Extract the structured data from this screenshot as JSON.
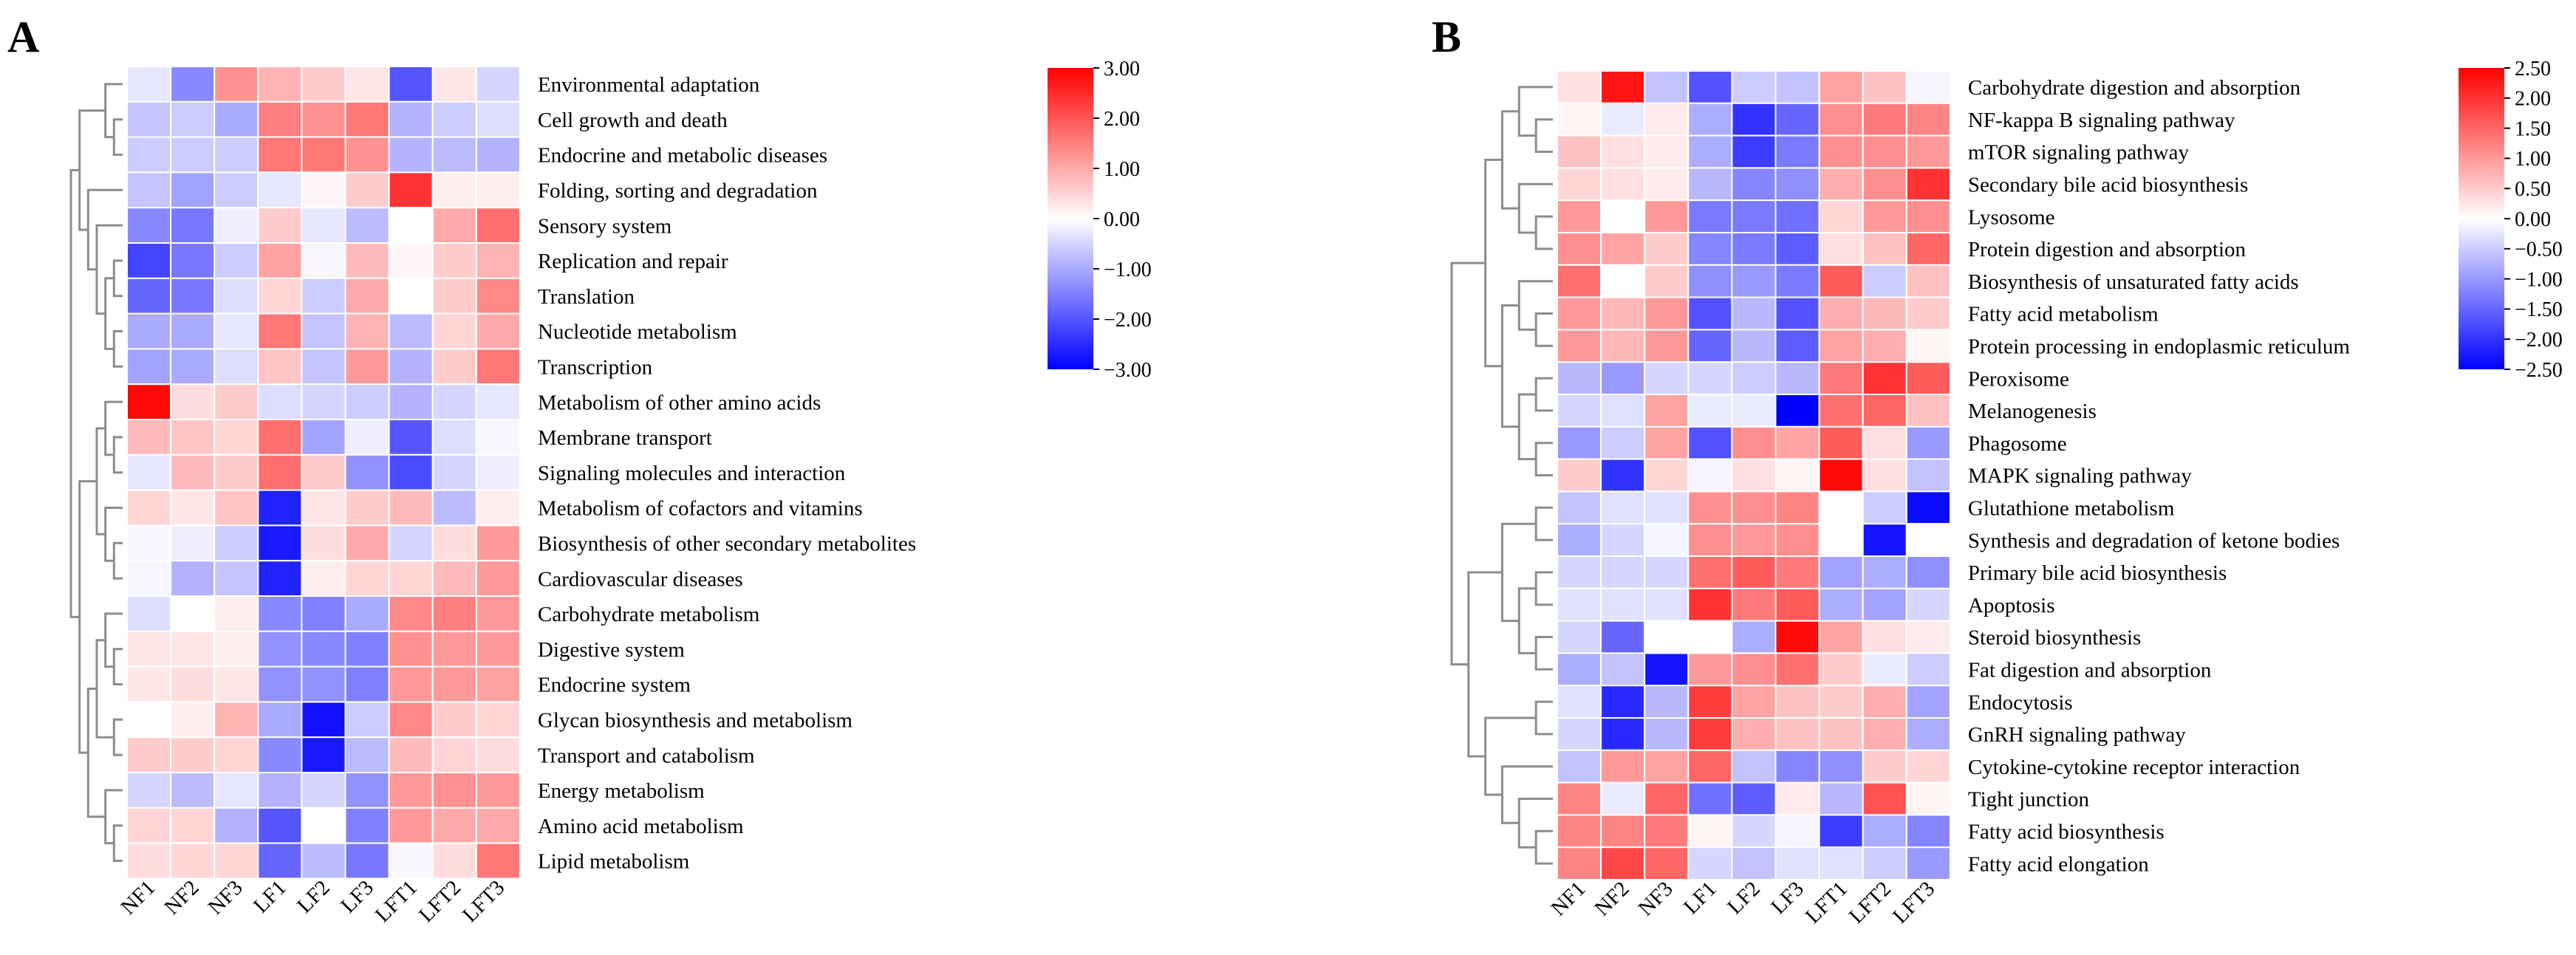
{
  "chart_data": [
    {
      "type": "heatmap",
      "panel_label": "A",
      "columns": [
        "NF1",
        "NF2",
        "NF3",
        "LF1",
        "LF2",
        "LF3",
        "LFT1",
        "LFT2",
        "LFT3"
      ],
      "rows": [
        "Environmental adaptation",
        "Cell growth and death",
        "Endocrine and metabolic diseases",
        "Folding, sorting and degradation",
        "Sensory system",
        "Replication and repair",
        "Translation",
        "Nucleotide metabolism",
        "Transcription",
        "Metabolism of other amino acids",
        "Membrane transport",
        "Signaling molecules and interaction",
        "Metabolism of cofactors and vitamins",
        "Biosynthesis of other secondary metabolites",
        "Cardiovascular diseases",
        "Carbohydrate metabolism",
        "Digestive system",
        "Endocrine system",
        "Glycan biosynthesis and metabolism",
        "Transport and catabolism",
        "Energy metabolism",
        "Amino acid metabolism",
        "Lipid metabolism"
      ],
      "values": [
        [
          -0.3,
          -1.4,
          1.3,
          0.9,
          0.6,
          0.3,
          -2.0,
          0.3,
          -0.5
        ],
        [
          -0.7,
          -0.6,
          -1.0,
          1.5,
          1.3,
          1.6,
          -0.9,
          -0.6,
          -0.4
        ],
        [
          -0.6,
          -0.6,
          -0.6,
          1.6,
          1.6,
          1.3,
          -0.9,
          -0.8,
          -0.9
        ],
        [
          -0.7,
          -1.1,
          -0.6,
          -0.3,
          0.1,
          0.6,
          2.4,
          0.2,
          0.2
        ],
        [
          -1.4,
          -1.6,
          -0.2,
          0.6,
          -0.3,
          -0.8,
          0.0,
          1.0,
          1.7
        ],
        [
          -2.2,
          -1.6,
          -0.6,
          1.1,
          -0.1,
          0.8,
          0.1,
          0.6,
          0.9
        ],
        [
          -1.8,
          -1.6,
          -0.4,
          0.5,
          -0.6,
          1.0,
          0.0,
          0.6,
          1.4
        ],
        [
          -1.0,
          -1.0,
          -0.3,
          1.6,
          -0.7,
          0.9,
          -0.8,
          0.5,
          1.0
        ],
        [
          -1.1,
          -1.0,
          -0.4,
          0.7,
          -0.7,
          1.2,
          -0.9,
          0.6,
          1.6
        ],
        [
          2.9,
          0.4,
          0.6,
          -0.4,
          -0.5,
          -0.6,
          -0.9,
          -0.5,
          -0.3
        ],
        [
          0.8,
          0.7,
          0.5,
          1.7,
          -1.1,
          -0.2,
          -2.0,
          -0.4,
          -0.1
        ],
        [
          -0.3,
          0.8,
          0.6,
          1.7,
          0.6,
          -1.3,
          -2.1,
          -0.5,
          -0.2
        ],
        [
          0.5,
          0.3,
          0.7,
          -2.6,
          0.3,
          0.6,
          0.8,
          -0.8,
          0.2
        ],
        [
          -0.1,
          -0.2,
          -0.6,
          -2.7,
          0.4,
          1.0,
          -0.5,
          0.4,
          1.2
        ],
        [
          -0.1,
          -0.9,
          -0.7,
          -2.6,
          0.2,
          0.5,
          0.5,
          0.8,
          1.2
        ],
        [
          -0.4,
          0.0,
          0.2,
          -1.4,
          -1.5,
          -1.0,
          1.4,
          1.5,
          1.2
        ],
        [
          0.3,
          0.3,
          0.2,
          -1.3,
          -1.4,
          -1.5,
          1.3,
          1.2,
          1.2
        ],
        [
          0.3,
          0.4,
          0.3,
          -1.3,
          -1.3,
          -1.5,
          1.2,
          1.2,
          1.1
        ],
        [
          0.0,
          0.2,
          0.9,
          -1.0,
          -2.8,
          -0.6,
          1.4,
          0.6,
          0.5
        ],
        [
          0.6,
          0.6,
          0.5,
          -1.4,
          -2.7,
          -0.8,
          0.8,
          0.5,
          0.4
        ],
        [
          -0.5,
          -0.8,
          -0.3,
          -0.9,
          -0.5,
          -1.3,
          1.2,
          1.3,
          1.2
        ],
        [
          0.5,
          0.5,
          -0.9,
          -2.0,
          0.0,
          -1.5,
          1.2,
          1.0,
          1.0
        ],
        [
          0.4,
          0.5,
          0.5,
          -1.8,
          -0.8,
          -1.6,
          -0.1,
          0.4,
          1.6
        ]
      ],
      "colorbar": {
        "min": -3,
        "max": 3,
        "ticks": [
          "3.00",
          "2.00",
          "1.00",
          "0.00",
          "−1.00",
          "−2.00",
          "−3.00"
        ],
        "colors": {
          "low": "#0000ff",
          "mid": "#ffffff",
          "high": "#ff0000"
        }
      }
    },
    {
      "type": "heatmap",
      "panel_label": "B",
      "columns": [
        "NF1",
        "NF2",
        "NF3",
        "LF1",
        "LF2",
        "LF3",
        "LFT1",
        "LFT2",
        "LFT3"
      ],
      "rows": [
        "Carbohydrate digestion and absorption",
        "NF-kappa B signaling pathway",
        "mTOR signaling pathway",
        "Secondary bile acid biosynthesis",
        "Lysosome",
        "Protein digestion and absorption",
        "Biosynthesis of unsaturated fatty acids",
        "Fatty acid metabolism",
        "Protein processing in endoplasmic reticulum",
        "Peroxisome",
        "Melanogenesis",
        "Phagosome",
        "MAPK signaling pathway",
        "Glutathione metabolism",
        "Synthesis and degradation of ketone bodies",
        "Primary bile acid biosynthesis",
        "Apoptosis",
        "Steroid biosynthesis",
        "Fat digestion and absorption",
        "Endocytosis",
        "GnRH signaling pathway",
        "Cytokine-cytokine receptor interaction",
        "Tight junction",
        "Fatty acid biosynthesis",
        "Fatty acid elongation"
      ],
      "values": [
        [
          0.3,
          2.3,
          -0.6,
          -1.7,
          -0.5,
          -0.6,
          0.9,
          0.6,
          -0.1
        ],
        [
          0.1,
          -0.2,
          0.2,
          -0.8,
          -2.0,
          -1.5,
          1.1,
          1.3,
          1.2
        ],
        [
          0.6,
          0.3,
          0.2,
          -0.8,
          -1.9,
          -1.3,
          1.1,
          1.1,
          1.0
        ],
        [
          0.4,
          0.3,
          0.2,
          -0.7,
          -1.2,
          -1.1,
          0.8,
          1.1,
          2.0
        ],
        [
          1.0,
          0.0,
          1.0,
          -1.3,
          -1.3,
          -1.4,
          0.4,
          1.0,
          1.1
        ],
        [
          1.1,
          0.9,
          0.5,
          -1.2,
          -1.3,
          -1.6,
          0.3,
          0.6,
          1.5
        ],
        [
          1.4,
          0.0,
          0.5,
          -1.1,
          -1.0,
          -1.3,
          1.6,
          -0.5,
          0.6
        ],
        [
          1.0,
          0.7,
          1.0,
          -1.7,
          -0.7,
          -1.7,
          0.8,
          0.7,
          0.5
        ],
        [
          1.0,
          0.7,
          1.0,
          -1.5,
          -0.7,
          -1.6,
          0.9,
          0.8,
          0.1
        ],
        [
          -0.7,
          -1.0,
          -0.4,
          -0.4,
          -0.5,
          -0.7,
          1.3,
          2.0,
          1.6
        ],
        [
          -0.4,
          -0.3,
          0.9,
          -0.2,
          -0.2,
          -2.5,
          1.4,
          1.5,
          0.6
        ],
        [
          -1.0,
          -0.5,
          0.9,
          -1.7,
          1.1,
          0.9,
          1.6,
          0.3,
          -1.0
        ],
        [
          0.5,
          -2.0,
          0.4,
          -0.1,
          0.3,
          0.1,
          2.4,
          0.3,
          -0.6
        ],
        [
          -0.6,
          -0.3,
          -0.3,
          1.1,
          1.1,
          1.2,
          0.0,
          -0.5,
          -2.4
        ],
        [
          -0.8,
          -0.4,
          -0.1,
          1.1,
          1.0,
          1.1,
          0.0,
          -2.3,
          0.0
        ],
        [
          -0.4,
          -0.4,
          -0.4,
          1.4,
          1.6,
          1.3,
          -0.9,
          -0.8,
          -1.1
        ],
        [
          -0.3,
          -0.3,
          -0.3,
          2.0,
          1.3,
          1.6,
          -0.8,
          -0.9,
          -0.4
        ],
        [
          -0.4,
          -1.5,
          0.0,
          0.0,
          -0.8,
          2.4,
          0.9,
          0.3,
          0.2
        ],
        [
          -0.8,
          -0.6,
          -2.3,
          1.0,
          1.1,
          1.4,
          0.5,
          -0.2,
          -0.5
        ],
        [
          -0.3,
          -2.1,
          -0.7,
          1.9,
          0.9,
          0.6,
          0.5,
          0.8,
          -0.9
        ],
        [
          -0.4,
          -2.1,
          -0.7,
          1.9,
          0.8,
          0.6,
          0.6,
          0.8,
          -0.8
        ],
        [
          -0.6,
          1.0,
          0.9,
          1.5,
          -0.6,
          -1.2,
          -1.1,
          0.5,
          0.4
        ],
        [
          1.2,
          -0.2,
          1.5,
          -1.4,
          -1.6,
          0.2,
          -0.7,
          1.7,
          0.1
        ],
        [
          1.2,
          1.2,
          1.3,
          0.1,
          -0.4,
          -0.1,
          -1.9,
          -0.8,
          -1.2
        ],
        [
          1.2,
          1.8,
          1.5,
          -0.4,
          -0.6,
          -0.3,
          -0.3,
          -0.5,
          -1.0
        ]
      ],
      "colorbar": {
        "min": -2.5,
        "max": 2.5,
        "ticks": [
          "2.50",
          "2.00",
          "1.50",
          "1.00",
          "0.50",
          "0.00",
          "−0.50",
          "−1.00",
          "−1.50",
          "−2.00",
          "−2.50"
        ],
        "colors": {
          "low": "#0000ff",
          "mid": "#ffffff",
          "high": "#ff0000"
        }
      }
    }
  ]
}
